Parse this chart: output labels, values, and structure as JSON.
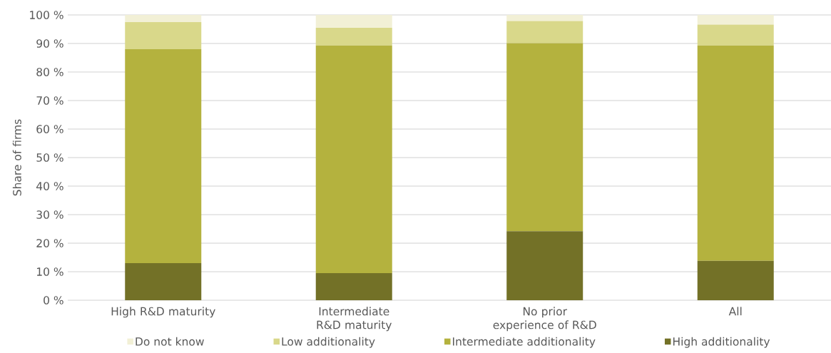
{
  "chart_data": {
    "type": "bar",
    "stacked": true,
    "ylabel": "Share of firms",
    "categories": [
      "High R&D maturity",
      "Intermediate R&D maturity",
      "No prior experience of R&D",
      "All"
    ],
    "series": [
      {
        "name": "High additionality",
        "color": "#737127",
        "values": [
          13,
          9.5,
          24.2,
          13.8
        ]
      },
      {
        "name": "Intermediate additionality",
        "color": "#b4b23e",
        "values": [
          75,
          79.8,
          65.9,
          75.5
        ]
      },
      {
        "name": "Low additionality",
        "color": "#d9d88a",
        "values": [
          9.5,
          6.2,
          7.8,
          7.3
        ]
      },
      {
        "name": "Do not know",
        "color": "#f2f0d6",
        "values": [
          2.5,
          4.5,
          2.1,
          3.4
        ]
      }
    ],
    "ylim": [
      0,
      100
    ],
    "yticks": [
      {
        "value": 0,
        "label": "0 %"
      },
      {
        "value": 10,
        "label": "10 %"
      },
      {
        "value": 20,
        "label": "20 %"
      },
      {
        "value": 30,
        "label": "30 %"
      },
      {
        "value": 40,
        "label": "40 %"
      },
      {
        "value": 50,
        "label": "50 %"
      },
      {
        "value": 60,
        "label": "60 %"
      },
      {
        "value": 70,
        "label": "70 %"
      },
      {
        "value": 80,
        "label": "80 %"
      },
      {
        "value": 90,
        "label": "90 %"
      },
      {
        "value": 100,
        "label": "100 %"
      }
    ],
    "grid": "y",
    "legend": "bottom"
  }
}
